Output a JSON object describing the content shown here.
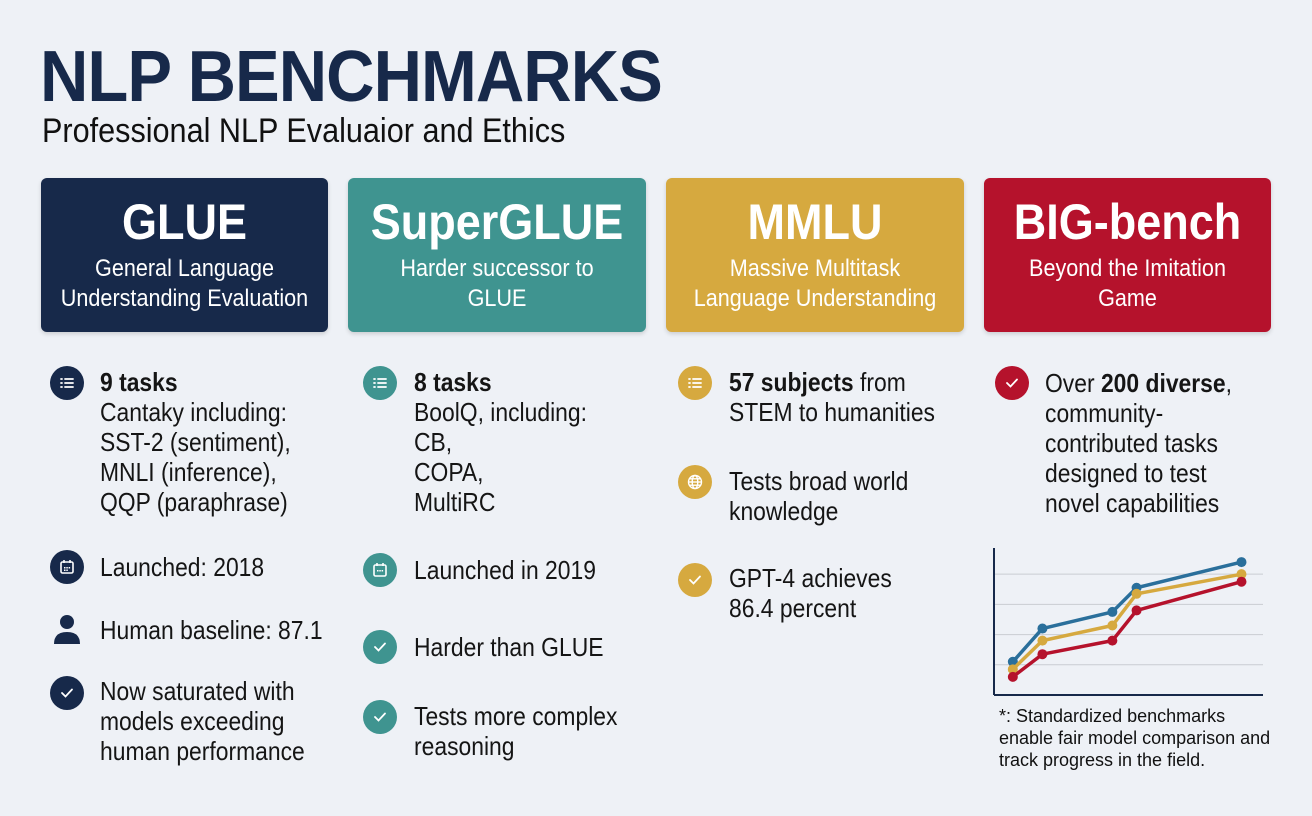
{
  "header": {
    "title": "NLP BENCHMARKS",
    "subtitle": "Professional NLP Evaluaior and Ethics"
  },
  "colors": {
    "background": "#eef1f6",
    "glue": "#17294a",
    "superglue": "#3f9490",
    "mmlu": "#d6a93f",
    "bigbench": "#b5122c"
  },
  "cards": [
    {
      "name": "GLUE",
      "desc1": "General Language",
      "desc2": "Understanding Evaluation"
    },
    {
      "name": "SuperGLUE",
      "desc1": "Harder successor to",
      "desc2": "GLUE"
    },
    {
      "name": "MMLU",
      "desc1": "Massive Multitask",
      "desc2": "Language Understanding"
    },
    {
      "name": "BIG-bench",
      "desc1": "Beyond the Imitation",
      "desc2": "Game"
    }
  ],
  "glue": {
    "tasks_bold": "9 tasks",
    "tasks_lines": [
      "Cantaky including:",
      "SST-2 (sentiment),",
      "MNLI (inference),",
      "QQP (paraphrase)"
    ],
    "launched": "Launched: 2018",
    "baseline": "Human baseline: 87.1",
    "saturated_lines": [
      "Now saturated with",
      "models exceeding",
      "human performance"
    ],
    "icons": [
      "list-icon",
      "calendar-icon",
      "person-icon",
      "check-icon"
    ]
  },
  "superglue": {
    "tasks_bold": "8 tasks",
    "tasks_lines": [
      "BoolQ, including:",
      "CB,",
      "COPA,",
      "MultiRC"
    ],
    "launched": "Launched in 2019",
    "harder": "Harder than GLUE",
    "complex_lines": [
      "Tests more complex",
      "reasoning"
    ],
    "icons": [
      "list-icon",
      "calendar-icon",
      "check-icon",
      "check-icon"
    ]
  },
  "mmlu": {
    "subjects_bold": "57 subjects",
    "subjects_rest": " from",
    "subjects_line2": "STEM to humanities",
    "knowledge_lines": [
      "Tests broad world",
      "knowledge"
    ],
    "gpt_lines": [
      "GPT-4 achieves",
      "86.4 percent"
    ],
    "icons": [
      "list-icon",
      "globe-icon",
      "check-icon"
    ]
  },
  "bigbench": {
    "over": "Over ",
    "bold": "200 diverse",
    "comma": ",",
    "lines": [
      "community-",
      "contributed tasks",
      "designed to test",
      "novel capabilities"
    ],
    "icons": [
      "check-icon"
    ]
  },
  "chart_data": {
    "type": "line",
    "title": "",
    "xlabel": "",
    "ylabel": "",
    "xlim": [
      0,
      10
    ],
    "ylim": [
      0,
      4.8
    ],
    "grid": true,
    "x": [
      0.7,
      1.8,
      4.4,
      5.3,
      9.2
    ],
    "series": [
      {
        "color": "#2a6f9b",
        "values": [
          1.1,
          2.2,
          2.75,
          3.55,
          4.4
        ]
      },
      {
        "color": "#d6a93f",
        "values": [
          0.85,
          1.8,
          2.3,
          3.35,
          4.0
        ]
      },
      {
        "color": "#b5122c",
        "values": [
          0.6,
          1.35,
          1.8,
          2.8,
          3.75
        ]
      }
    ]
  },
  "footnote": [
    "*: Standardized benchmarks",
    "enable fair model comparison and",
    "track progress in the field."
  ]
}
